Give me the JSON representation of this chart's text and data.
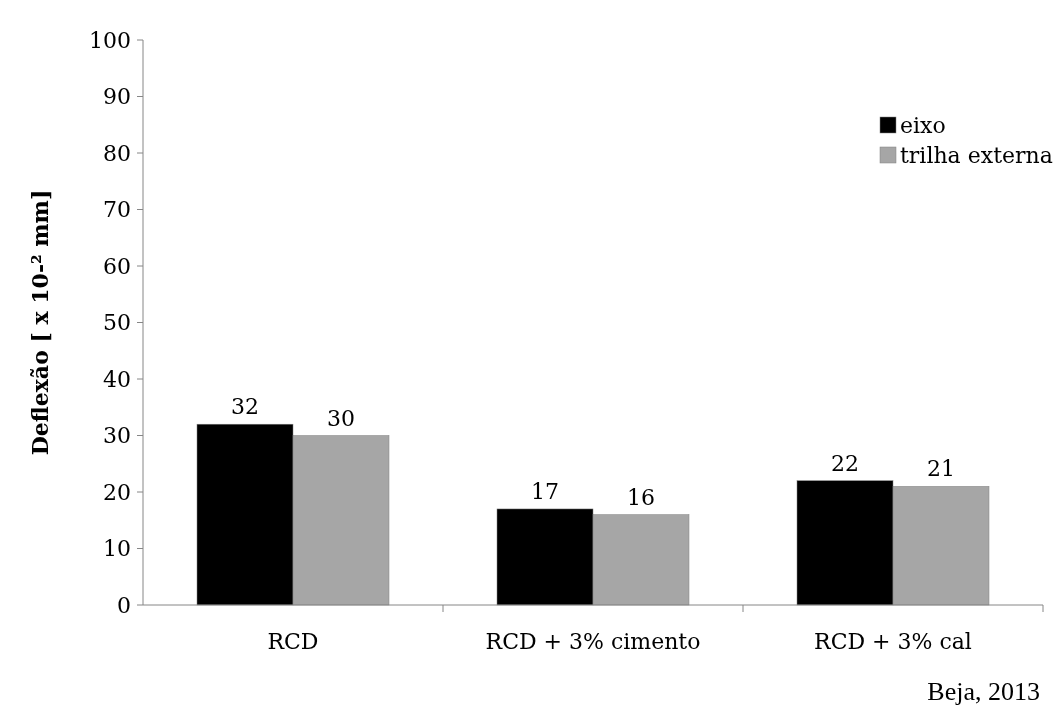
{
  "chart_data": {
    "type": "bar",
    "ylabel": "Deflexão [ x 10-² mm]",
    "categories": [
      "RCD",
      "RCD + 3% cimento",
      "RCD + 3% cal"
    ],
    "series": [
      {
        "name": "eixo",
        "color": "#000000",
        "values": [
          32,
          17,
          22
        ]
      },
      {
        "name": "trilha externa",
        "color": "#a6a6a6",
        "values": [
          30,
          16,
          21
        ]
      }
    ],
    "ylim": [
      0,
      100
    ],
    "yticks": [
      0,
      10,
      20,
      30,
      40,
      50,
      60,
      70,
      80,
      90,
      100
    ],
    "grid": false,
    "legend": "top right",
    "data_labels": true,
    "annotations": [
      "Beja, 2013"
    ]
  }
}
